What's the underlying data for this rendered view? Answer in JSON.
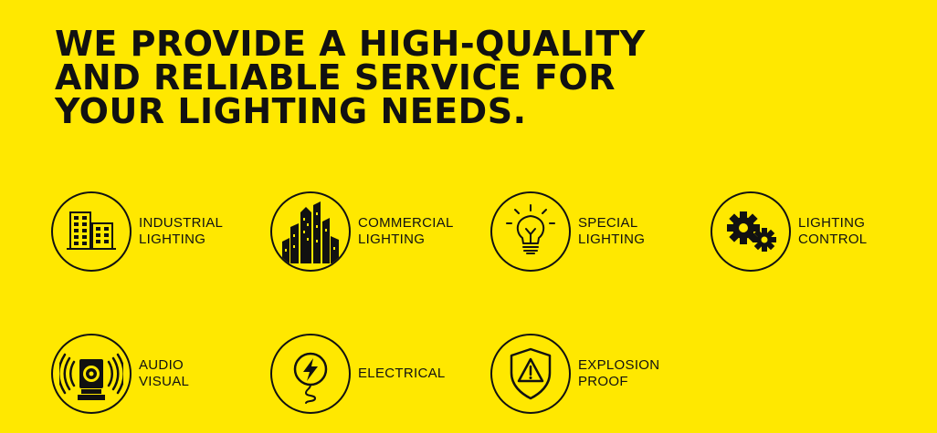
{
  "headline": {
    "line1": "WE PROVIDE A HIGH-QUALITY",
    "line2": "AND RELIABLE SERVICE FOR",
    "line3": "YOUR LIGHTING NEEDS."
  },
  "colors": {
    "background": "#FFE800",
    "foreground": "#111111"
  },
  "services": [
    {
      "icon": "industrial-buildings-icon",
      "line1": "INDUSTRIAL",
      "line2": "LIGHTING"
    },
    {
      "icon": "city-skyline-icon",
      "line1": "COMMERCIAL",
      "line2": "LIGHTING"
    },
    {
      "icon": "lightbulb-icon",
      "line1": "SPECIAL",
      "line2": "LIGHTING"
    },
    {
      "icon": "gears-icon",
      "line1": "LIGHTING",
      "line2": "CONTROL"
    },
    {
      "icon": "speaker-icon",
      "line1": "AUDIO",
      "line2": "VISUAL"
    },
    {
      "icon": "lightning-plug-icon",
      "line1": "ELECTRICAL",
      "line2": ""
    },
    {
      "icon": "warning-shield-icon",
      "line1": "EXPLOSION",
      "line2": "PROOF"
    }
  ]
}
